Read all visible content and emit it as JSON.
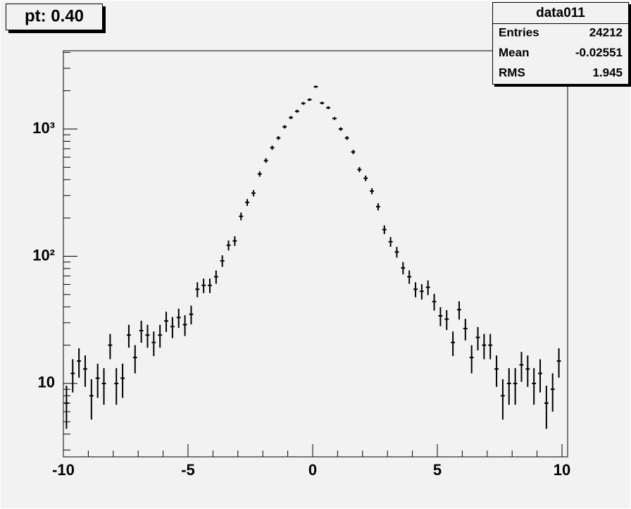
{
  "chart_data": {
    "type": "histogram",
    "title": "pt: 0.40",
    "log_y": true,
    "color": "#000000",
    "stats": {
      "name": "data011",
      "rows": [
        [
          "Entries",
          24212
        ],
        [
          "Mean",
          -0.02551
        ],
        [
          "RMS",
          1.945
        ]
      ]
    },
    "bins": [
      -10,
      -9.75,
      -9.5,
      -9.25,
      -9,
      -8.75,
      -8.5,
      -8.25,
      -8,
      -7.75,
      -7.5,
      -7.25,
      -7,
      -6.75,
      -6.5,
      -6.25,
      -6,
      -5.75,
      -5.5,
      -5.25,
      -5,
      -4.75,
      -4.5,
      -4.25,
      -4,
      -3.75,
      -3.5,
      -3.25,
      -3,
      -2.75,
      -2.5,
      -2.25,
      -2,
      -1.75,
      -1.5,
      -1.25,
      -1,
      -0.75,
      -0.5,
      -0.25,
      0,
      0.25,
      0.5,
      0.75,
      1,
      1.25,
      1.5,
      1.75,
      2,
      2.25,
      2.5,
      2.75,
      3,
      3.25,
      3.5,
      3.75,
      4,
      4.25,
      4.5,
      4.75,
      5,
      5.25,
      5.5,
      5.75,
      6,
      6.25,
      6.5,
      6.75,
      7,
      7.25,
      7.5,
      7.75,
      8,
      8.25,
      8.5,
      8.75,
      9,
      9.25,
      9.5,
      9.75,
      10
    ],
    "values": [
      7,
      12,
      15,
      13,
      8,
      11,
      10,
      20,
      10,
      11,
      24,
      16,
      26,
      24,
      21,
      24,
      31,
      28,
      33,
      29,
      35,
      55,
      59,
      59,
      69,
      92,
      122,
      132,
      206,
      265,
      313,
      443,
      565,
      713,
      850,
      1040,
      1230,
      1380,
      1590,
      1700,
      2150,
      1600,
      1470,
      1210,
      1000,
      850,
      660,
      480,
      410,
      325,
      245,
      162,
      130,
      108,
      81,
      69,
      55,
      53,
      57,
      44,
      34,
      32,
      21,
      38,
      27,
      16,
      23,
      20,
      20,
      13,
      8,
      10,
      10,
      14,
      13,
      10,
      12,
      7,
      9,
      15
    ],
    "errors": [
      2.6,
      3.5,
      3.9,
      3.6,
      2.8,
      3.3,
      3.2,
      4.5,
      3.2,
      3.3,
      4.9,
      4.0,
      5.1,
      4.9,
      4.6,
      4.9,
      5.6,
      5.3,
      5.7,
      5.4,
      5.9,
      7.4,
      7.7,
      7.7,
      8.3,
      9.6,
      11.0,
      11.5,
      14.4,
      16.3,
      17.7,
      21.0,
      23.8,
      26.7,
      29.2,
      32.2,
      35.1,
      37.1,
      39.9,
      41.2,
      46.4,
      40.0,
      38.3,
      34.8,
      31.6,
      29.2,
      25.7,
      21.9,
      20.2,
      18.0,
      15.7,
      12.7,
      11.4,
      10.4,
      9.0,
      8.3,
      7.4,
      7.3,
      7.5,
      6.6,
      5.8,
      5.7,
      4.6,
      6.2,
      5.2,
      4.0,
      4.8,
      4.5,
      4.5,
      3.6,
      2.8,
      3.2,
      3.2,
      3.7,
      3.6,
      3.2,
      3.5,
      2.6,
      3.0,
      3.9
    ],
    "xlim": [
      -10,
      10
    ],
    "xticks": [
      -10,
      -5,
      0,
      5,
      10
    ],
    "xminorticks": [
      -9,
      -8,
      -7,
      -6,
      -4,
      -3,
      -2,
      -1,
      1,
      2,
      3,
      4,
      6,
      7,
      8,
      9
    ],
    "ylim": [
      2.65,
      4120
    ],
    "yticks": [
      {
        "value": 10,
        "label": "10"
      },
      {
        "value": 100,
        "label": "10²"
      },
      {
        "value": 1000,
        "label": "10³"
      }
    ],
    "yminorticks": [
      3,
      4,
      5,
      6,
      7,
      8,
      9,
      20,
      30,
      40,
      50,
      60,
      70,
      80,
      90,
      200,
      300,
      400,
      500,
      600,
      700,
      800,
      900,
      2000,
      3000,
      4000
    ]
  }
}
